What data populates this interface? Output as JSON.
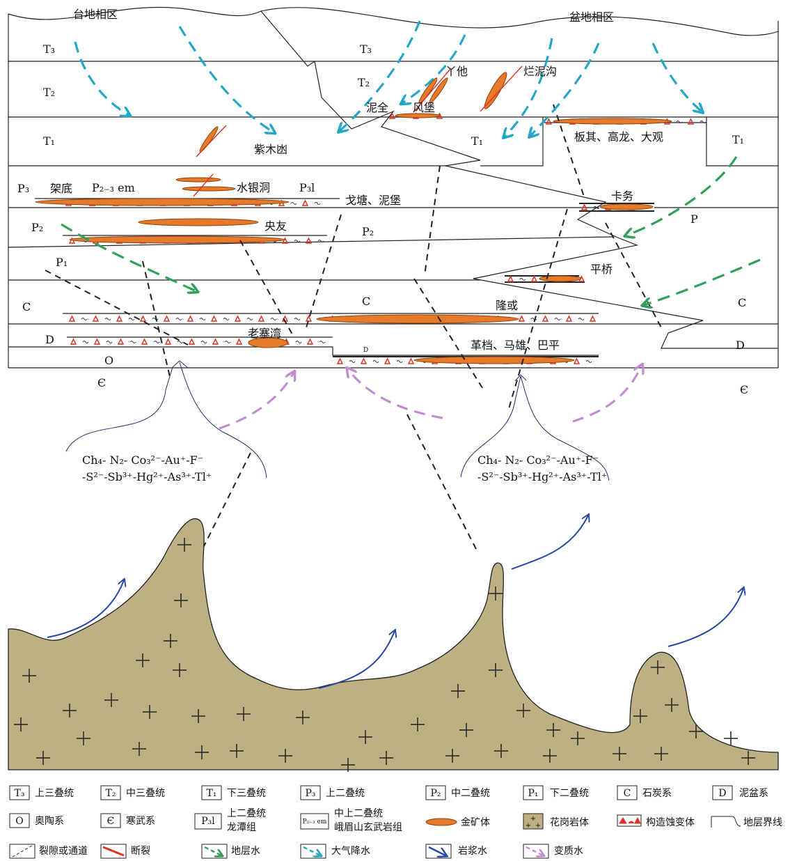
{
  "title_left": "台地相区",
  "title_right": "盆地相区",
  "strata": {
    "T3": "T₃",
    "T2": "T₂",
    "T1": "T₁",
    "P3": "P₃",
    "P2": "P₂",
    "P1": "P₁",
    "C": "C",
    "D": "D",
    "O": "O",
    "Cam": "Є",
    "P": "P",
    "P23em": "P₂₋₃ em",
    "P3l": "P₃l"
  },
  "places": {
    "yata": "丫他",
    "lannigou": "烂泥沟",
    "niquan": "泥全",
    "fengbao": "风堡",
    "zimudang": "紫木凼",
    "banqi": "板其、高龙、大观",
    "jiadi": "架底",
    "shuiyindong": "水银洞",
    "getang": "戈塘、泥堡",
    "kawu": "卡务",
    "yangyou": "央友",
    "pingqiao": "平桥",
    "longhuo": "隆或",
    "laozhaiwan": "老寨湾",
    "gedang": "革档、马雄、巴平"
  },
  "fluids": {
    "line1": "Ch₄- N₂- Co₃²⁻-Au⁺-F⁻",
    "line2": "-S²⁻-Sb³⁺-Hg²⁺-As³⁺-Tl⁺"
  },
  "colors": {
    "granite": "#bdb083",
    "ore": "#e57a2a",
    "fault": "#e0301e",
    "meteoric": "#22a8c4",
    "formation": "#32a05a",
    "magmatic": "#2747a8",
    "metamorphic": "#c08ed0"
  },
  "legend": [
    {
      "sym": "T₃",
      "label": "上三叠统"
    },
    {
      "sym": "T₂",
      "label": "中三叠统"
    },
    {
      "sym": "T₁",
      "label": "下三叠统"
    },
    {
      "sym": "P₃",
      "label": "上二叠统"
    },
    {
      "sym": "P₂",
      "label": "中二叠统"
    },
    {
      "sym": "P₁",
      "label": "下二叠统"
    },
    {
      "sym": "C",
      "label": "石炭系"
    },
    {
      "sym": "D",
      "label": "泥盆系"
    },
    {
      "sym": "O",
      "label": "奥陶系"
    },
    {
      "sym": "Є",
      "label": "寒武系"
    },
    {
      "sym": "P₃l",
      "label": "上二叠统",
      "label2": "龙潭组"
    },
    {
      "sym": "P₂₋₃ em",
      "label": "中上二叠统",
      "label2": "峨眉山玄武岩组"
    },
    {
      "icon": "ore-icon",
      "label": "金矿体"
    },
    {
      "icon": "granite-icon",
      "label": "花岗岩体"
    },
    {
      "icon": "alteration-icon",
      "label": "构造蚀变体"
    },
    {
      "icon": "boundary-icon",
      "label": "地层界线"
    },
    {
      "icon": "fracture-icon",
      "label": "裂隙或通道"
    },
    {
      "icon": "fault-icon",
      "label": "断裂"
    },
    {
      "icon": "formation-water-icon",
      "label": "地层水"
    },
    {
      "icon": "meteoric-water-icon",
      "label": "大气降水"
    },
    {
      "icon": "magmatic-water-icon",
      "label": "岩浆水"
    },
    {
      "icon": "metamorphic-water-icon",
      "label": "变质水"
    }
  ]
}
